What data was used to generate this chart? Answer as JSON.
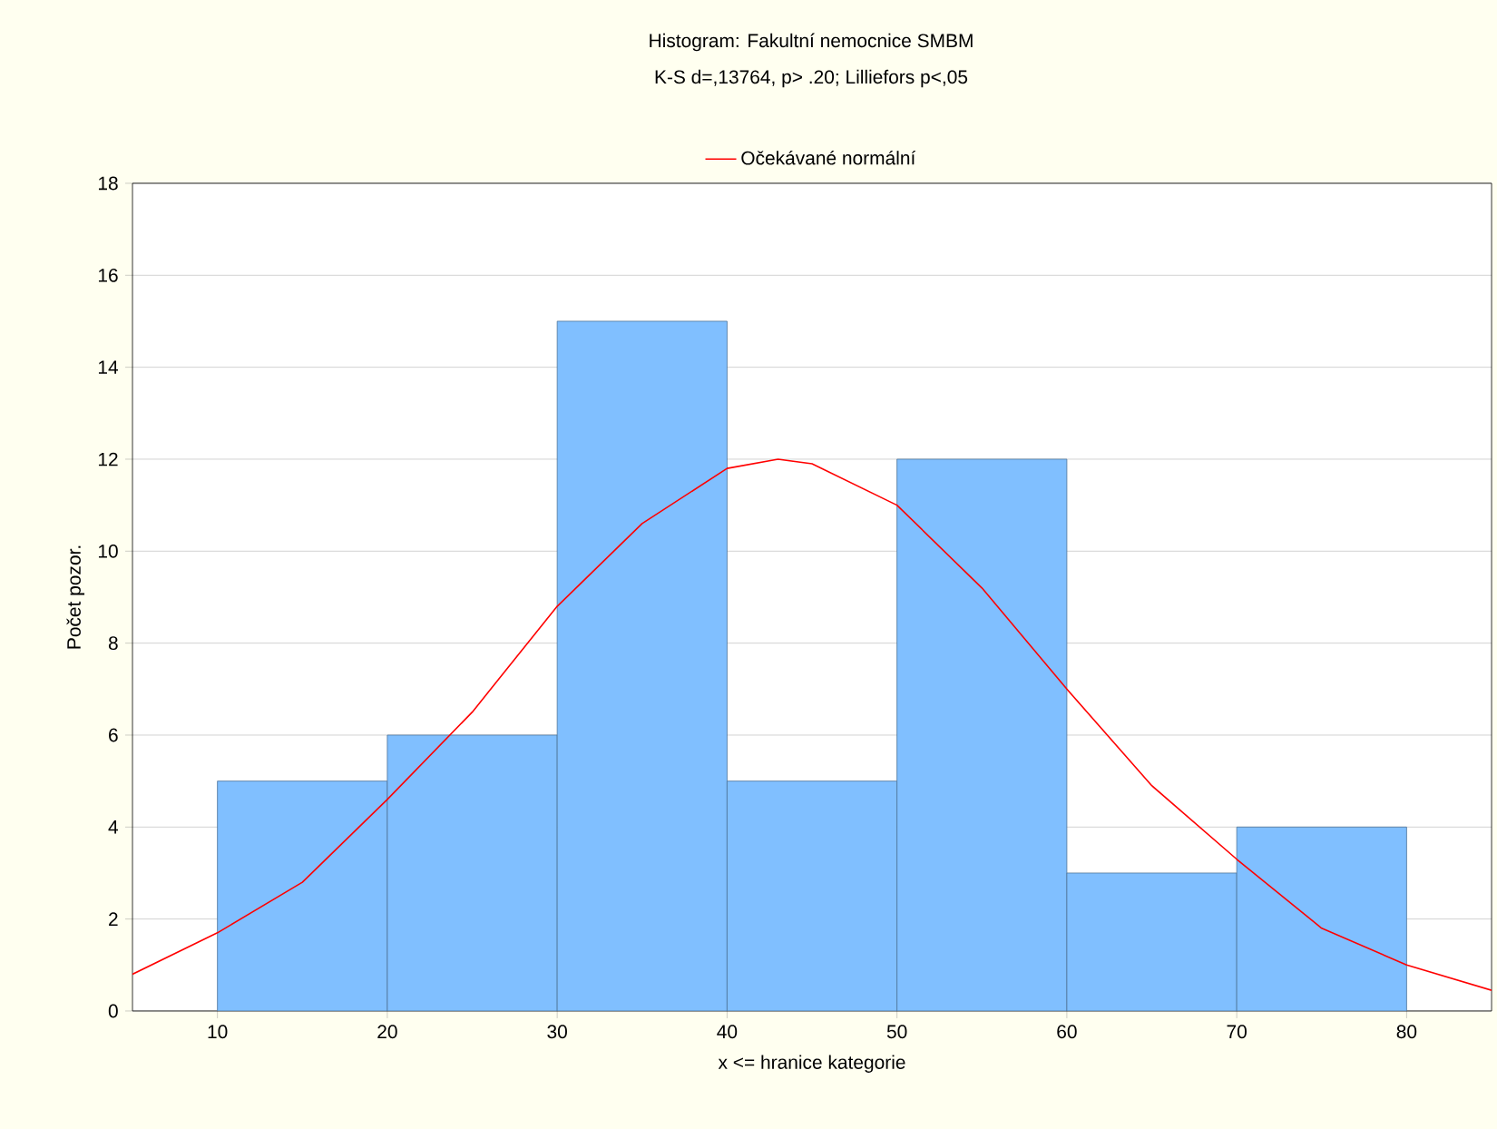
{
  "chart_data": {
    "type": "histogram",
    "title": "Histogram: Fakultní nemocnice SMBM",
    "subtitle": "K-S d=,13764, p> .20; Lilliefors p<,05",
    "xlabel": "x <= hranice kategorie",
    "ylabel": "Počet pozor.",
    "bins": [
      10,
      20,
      30,
      40,
      50,
      60,
      70,
      80
    ],
    "values": [
      5,
      6,
      15,
      5,
      12,
      3,
      4
    ],
    "color": "#80bfff",
    "series": [
      {
        "type": "line",
        "name": "Očekávané normální",
        "color": "#ff0000",
        "x": [
          5,
          10,
          15,
          20,
          25,
          30,
          35,
          40,
          43,
          45,
          50,
          55,
          60,
          65,
          70,
          75,
          80,
          85
        ],
        "values": [
          0.8,
          1.7,
          2.8,
          4.6,
          6.5,
          8.8,
          10.6,
          11.8,
          12,
          11.9,
          11,
          9.2,
          7,
          4.9,
          3.3,
          1.8,
          1,
          0.45
        ]
      }
    ],
    "xlim": [
      5,
      85
    ],
    "ylim": [
      0,
      18
    ],
    "xticks": [
      10,
      20,
      30,
      40,
      50,
      60,
      70,
      80
    ],
    "yticks": [
      0,
      2,
      4,
      6,
      8,
      10,
      12,
      14,
      16,
      18
    ],
    "grid": "y",
    "legend": "top"
  }
}
